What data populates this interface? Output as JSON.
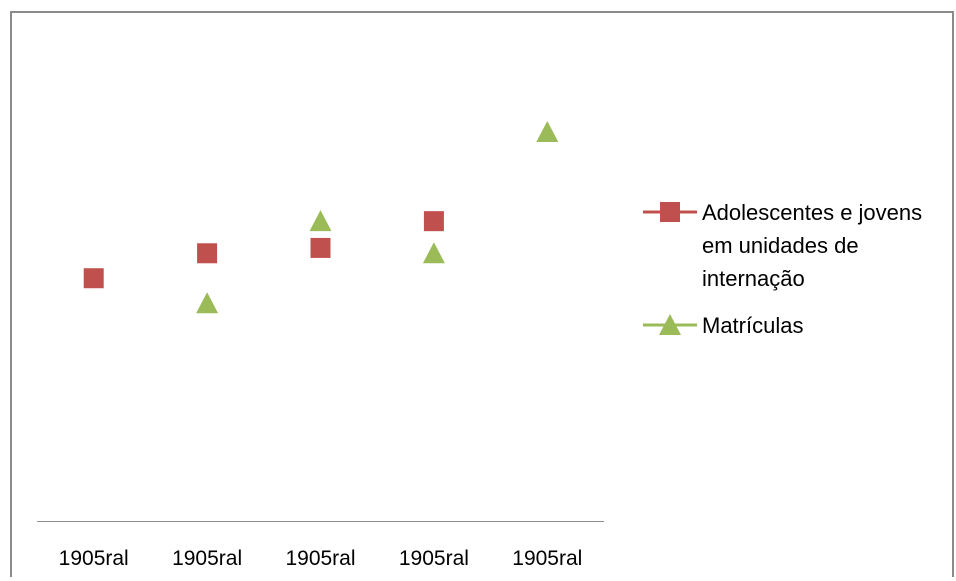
{
  "chart_data": {
    "type": "scatter",
    "title": "",
    "xlabel": "",
    "ylabel": "",
    "categories": [
      "1905ral",
      "1905ral",
      "1905ral",
      "1905ral",
      "1905ral"
    ],
    "ylim": [
      0,
      100
    ],
    "grid": false,
    "legend_position": "right",
    "series": [
      {
        "name": "Adolescentes e jovens em unidades de internação",
        "name_lines": [
          "Adolescentes e jovens",
          "em unidades de",
          "internação"
        ],
        "marker": "square",
        "color": "#c0504d",
        "values": [
          59,
          66,
          67.5,
          75,
          null
        ]
      },
      {
        "name": "Matrículas",
        "name_lines": [
          "Matrículas"
        ],
        "marker": "triangle",
        "color": "#9bbb59",
        "values": [
          null,
          52,
          75,
          66,
          100
        ]
      }
    ]
  }
}
